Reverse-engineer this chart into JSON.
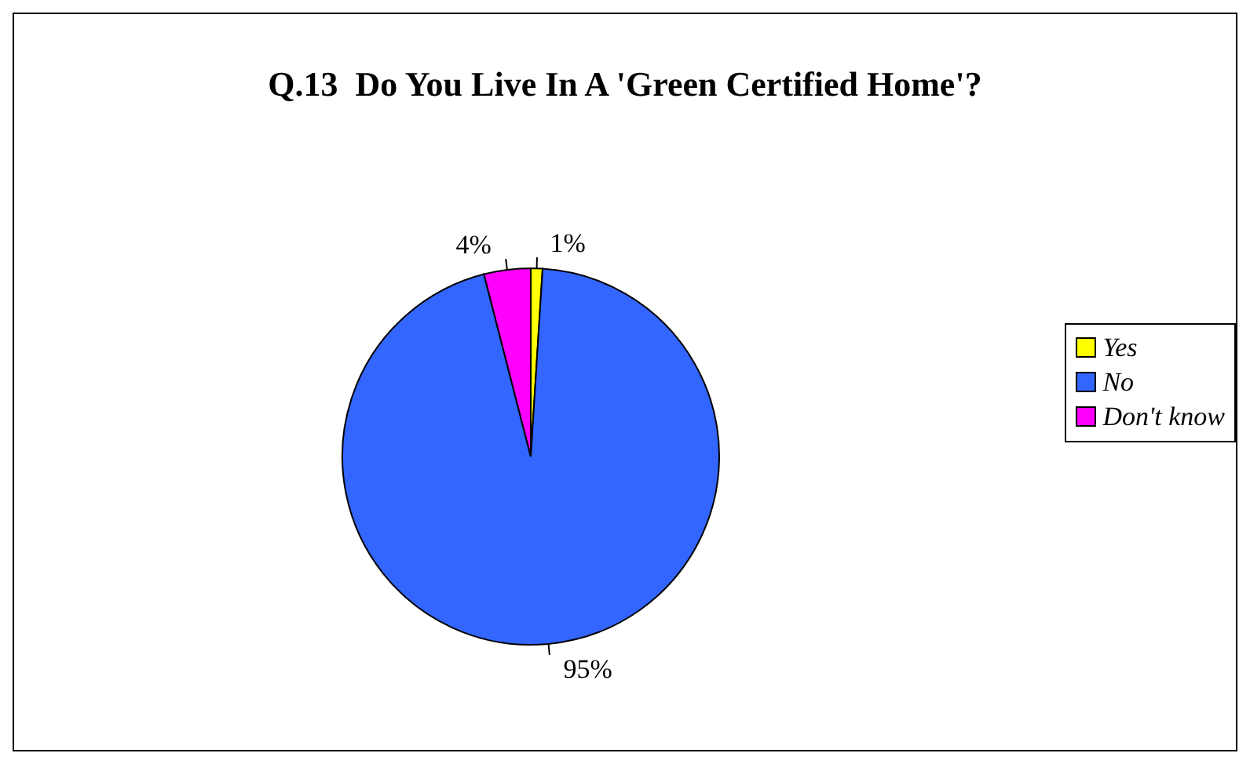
{
  "chart_data": {
    "type": "pie",
    "title": "Q.13  Do You Live In A 'Green Certified Home'?",
    "categories": [
      "Yes",
      "No",
      "Don't know"
    ],
    "values": [
      1,
      95,
      4
    ],
    "value_labels": [
      "1%",
      "95%",
      "4%"
    ],
    "colors": [
      "#ffff00",
      "#3366ff",
      "#ff00ff"
    ],
    "legend": "right"
  }
}
